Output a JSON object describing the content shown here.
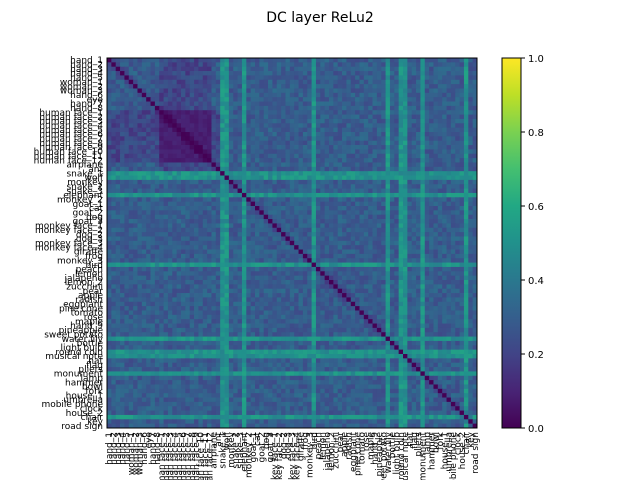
{
  "figure": {
    "title": "DC layer ReLu2"
  },
  "chart_data": {
    "type": "heatmap",
    "title": "DC layer ReLu2",
    "labels": [
      "hand_1",
      "hand_2",
      "hand_3",
      "hand_4",
      "hand_5",
      "woman_1",
      "woman_2",
      "woman_3",
      "hand_6",
      "eye",
      "hand_7",
      "hand_8",
      "human face_1",
      "human face_2",
      "human face_3",
      "human face_4",
      "human face_5",
      "human face_6",
      "human face_7",
      "human face_8",
      "human face_9",
      "human face_10",
      "human face_11",
      "human face_12",
      "airplane",
      "ant",
      "snake_1",
      "wolf",
      "monkey",
      "snake_2",
      "snake_3",
      "elephant",
      "monkey_2",
      "goat_1",
      "cat",
      "goat_2",
      "dog",
      "goat_3",
      "monkey face_1",
      "monkey face_2",
      "dog_2",
      "dog_3",
      "monkey face_3",
      "monkey face_4",
      "giraffe",
      "frog",
      "monkey_3",
      "bird",
      "peach",
      "lemon",
      "jalapeño",
      "lemon_2",
      "zucchini",
      "pear",
      "apple",
      "radish",
      "eggplant",
      "pine cone",
      "tomato",
      "rose",
      "maple",
      "hand_9",
      "pineapple",
      "sweet potato",
      "water lily",
      "bottle",
      "light bulb",
      "round coin",
      "musical note",
      "hat",
      "flag",
      "pliers",
      "monument",
      "lamp",
      "hammer",
      "bowl",
      "fork",
      "house_1",
      "umbrella",
      "mobile phone",
      "clock",
      "house_2",
      "chair",
      "key",
      "road sign"
    ],
    "y_tick_labels": [
      "hand_1",
      "hand_2",
      "hand_3",
      "hand_4",
      "hand_5",
      "woman_1",
      "woman_2",
      "woman_3",
      "hand_6",
      "eye",
      "hand_7",
      "hand_8",
      "human face_1",
      "human face_2",
      "human face_3",
      "human face_4",
      "human face_5",
      "human face_6",
      "human face_7",
      "human face_8",
      "human face_9",
      "human face_10",
      "human face_11",
      "human face_12",
      "airplane",
      "ant",
      "snake_1",
      "wolf",
      "monkey",
      "snake_2",
      "snake_3",
      "elephant",
      "monkey_2",
      "goat_1",
      "cat",
      "goat_2",
      "dog",
      "goat_3",
      "monkey face_1",
      "monkey face_2",
      "dog_2",
      "dog_3",
      "monkey face_3",
      "monkey face_4",
      "giraffe",
      "frog",
      "monkey_3",
      "bird",
      "peach",
      "lemon",
      "jalapeño",
      "lemon_2",
      "zucchini",
      "pear",
      "apple",
      "radish",
      "eggplant",
      "pine cone",
      "tomato",
      "rose",
      "maple",
      "hand_9",
      "pineapple",
      "sweet potato",
      "water lily",
      "bottle",
      "light bulb",
      "round coin",
      "musical note",
      "hat",
      "flag",
      "pliers",
      "monument",
      "lamp",
      "hammer",
      "bowl",
      "fork",
      "house_1",
      "umbrella",
      "mobile phone",
      "clock",
      "house_2",
      "chair",
      "key",
      "road sign"
    ],
    "x_tick_labels": [
      "hand_1",
      "hand_2",
      "hand_3",
      "hand_4",
      "hand_5",
      "woman_1",
      "woman_2",
      "woman_3",
      "hand_6",
      "eye",
      "hand_7",
      "hand_8",
      "human face_1",
      "human face_2",
      "human face_3",
      "human face_4",
      "human face_5",
      "human face_6",
      "human face_7",
      "human face_8",
      "human face_9",
      "human face_10",
      "human face_11",
      "human face_12",
      "airplane",
      "ant",
      "snake_1",
      "wolf",
      "monkey",
      "snake_2",
      "snake_3",
      "elephant",
      "monkey_2",
      "goat_1",
      "cat",
      "goat_2",
      "dog",
      "goat_3",
      "monkey face_1",
      "monkey face_2",
      "dog_2",
      "dog_3",
      "monkey face_3",
      "monkey face_4",
      "giraffe",
      "frog",
      "monkey_3",
      "bird",
      "peach",
      "lemon",
      "jalapeño",
      "lemon_2",
      "zucchini",
      "pear",
      "apple",
      "radish",
      "eggplant",
      "pine cone",
      "tomato",
      "rose",
      "maple",
      "hand_9",
      "pineapple",
      "sweet potato",
      "water lily",
      "bottle",
      "light bulb",
      "round coin",
      "musical note",
      "hat",
      "flag",
      "pliers",
      "monument",
      "lamp",
      "hammer",
      "bowl",
      "fork",
      "house_1",
      "umbrella",
      "mobile phone",
      "clock",
      "house_2",
      "chair",
      "key",
      "road sign"
    ],
    "diagonal_value": 0.0,
    "colorbar": {
      "colormap": "viridis",
      "range": [
        0.0,
        1.0
      ],
      "ticks": [
        "0.0",
        "0.2",
        "0.4",
        "0.6",
        "0.8",
        "1.0"
      ]
    },
    "bright_columns": [
      "snake_1",
      "wolf",
      "elephant",
      "bird",
      "water lily",
      "round coin",
      "musical note",
      "monument",
      "chair"
    ],
    "dark_block": [
      "human face_1",
      "human face_12"
    ],
    "colors": {
      "low": "#440154",
      "mid": "#21918c",
      "high": "#fde725"
    }
  }
}
